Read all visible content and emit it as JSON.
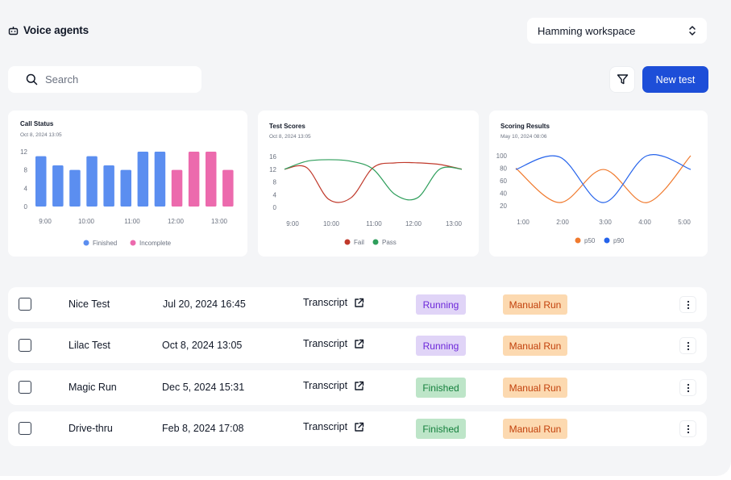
{
  "header": {
    "title": "Voice agents",
    "title_icon": "robot-icon",
    "workspace": "Hamming workspace",
    "workspace_icon": "chevron-up-down-icon"
  },
  "toolbar": {
    "search_placeholder": "Search",
    "filter_icon": "filter-icon",
    "new_test_label": "New test"
  },
  "charts": {
    "call_status": {
      "title": "Call Status",
      "subtitle": "Oct 8, 2024 13:05",
      "yticks": [
        "12",
        "8",
        "4",
        "0"
      ],
      "xticks": [
        "9:00",
        "10:00",
        "11:00",
        "12:00",
        "13:00"
      ],
      "legend": [
        "Finished",
        "Incomplete"
      ]
    },
    "test_scores": {
      "title": "Test Scores",
      "subtitle": "Oct 8, 2024 13:05",
      "yticks": [
        "16",
        "12",
        "8",
        "4",
        "0"
      ],
      "xticks": [
        "9:00",
        "10:00",
        "11:00",
        "12:00",
        "13:00"
      ],
      "legend": [
        "Fail",
        "Pass"
      ]
    },
    "scoring_results": {
      "title": "Scoring Results",
      "subtitle": "May 10, 2024 08:06",
      "yticks": [
        "100",
        "80",
        "60",
        "40",
        "20"
      ],
      "xticks": [
        "1:00",
        "2:00",
        "3:00",
        "4:00",
        "5:00"
      ],
      "legend": [
        "p50",
        "p90"
      ]
    }
  },
  "chart_data": [
    {
      "type": "bar",
      "title": "Call Status",
      "subtitle": "Oct 8, 2024 13:05",
      "ylim": [
        0,
        12
      ],
      "legend_position": "bottom",
      "series": [
        {
          "name": "Finished",
          "color": "#5b8ef0",
          "values": [
            11,
            9,
            8,
            11,
            9,
            8,
            12,
            12,
            null,
            null,
            null,
            null
          ]
        },
        {
          "name": "Incomplete",
          "color": "#ec6aad",
          "values": [
            null,
            null,
            null,
            null,
            null,
            null,
            null,
            null,
            8,
            12,
            12,
            8
          ]
        }
      ]
    },
    {
      "type": "line",
      "title": "Test Scores",
      "subtitle": "Oct 8, 2024 13:05",
      "ylim": [
        0,
        16
      ],
      "legend_position": "bottom",
      "x": [
        "9:00",
        "9:30",
        "10:00",
        "10:30",
        "11:00",
        "11:30",
        "12:00",
        "12:30",
        "13:00"
      ],
      "series": [
        {
          "name": "Fail",
          "color": "#c0392b",
          "values": [
            12,
            12.5,
            2.5,
            3,
            12.5,
            14,
            14,
            13.5,
            12
          ]
        },
        {
          "name": "Pass",
          "color": "#2e9e5b",
          "values": [
            12,
            14.5,
            15,
            14.5,
            12,
            4,
            3,
            12,
            12
          ]
        }
      ]
    },
    {
      "type": "line",
      "title": "Scoring Results",
      "subtitle": "May 10, 2024 08:06",
      "ylim": [
        20,
        100
      ],
      "legend_position": "bottom",
      "x": [
        "1:00",
        "2:00",
        "3:00",
        "4:00",
        "5:00"
      ],
      "series": [
        {
          "name": "p50",
          "color": "#f07a2e",
          "values": [
            80,
            25,
            78,
            25,
            100
          ]
        },
        {
          "name": "p90",
          "color": "#2563eb",
          "values": [
            78,
            98,
            25,
            100,
            78
          ]
        }
      ]
    }
  ],
  "table": {
    "transcript_label": "Transcript",
    "rows": [
      {
        "name": "Nice Test",
        "date": "Jul 20, 2024 16:45",
        "status": "Running",
        "type": "Manual Run"
      },
      {
        "name": "Lilac Test",
        "date": "Oct 8, 2024 13:05",
        "status": "Running",
        "type": "Manual Run"
      },
      {
        "name": "Magic Run",
        "date": "Dec 5, 2024 15:31",
        "status": "Finished",
        "type": "Manual Run"
      },
      {
        "name": "Drive-thru",
        "date": "Feb 8, 2024 17:08",
        "status": "Finished",
        "type": "Manual Run"
      }
    ]
  }
}
